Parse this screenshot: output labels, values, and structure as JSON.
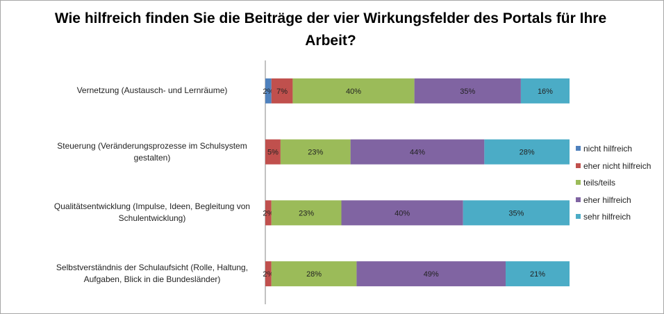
{
  "chart_data": {
    "type": "bar",
    "orientation": "horizontal",
    "stacked": "percent",
    "title": "Wie hilfreich finden Sie die Beiträge der vier Wirkungsfelder des Portals für Ihre Arbeit?",
    "categories": [
      "Vernetzung (Austausch- und Lernräume)",
      "Steuerung (Veränderungsprozesse im Schulsystem gestalten)",
      "Qualitätsentwicklung (Impulse, Ideen, Begleitung von Schulentwicklung)",
      "Selbstverständnis der Schulaufsicht (Rolle, Haltung, Aufgaben, Blick in die Bundesländer)"
    ],
    "series": [
      {
        "name": "nicht hilfreich",
        "color": "#4f81bd",
        "values": [
          2,
          0,
          0,
          0
        ]
      },
      {
        "name": "eher nicht hilfreich",
        "color": "#c0504d",
        "values": [
          7,
          5,
          2,
          2
        ]
      },
      {
        "name": "teils/teils",
        "color": "#9bbb59",
        "values": [
          40,
          23,
          23,
          28
        ]
      },
      {
        "name": "eher hilfreich",
        "color": "#8064a2",
        "values": [
          35,
          44,
          40,
          49
        ]
      },
      {
        "name": "sehr hilfreich",
        "color": "#4bacc6",
        "values": [
          16,
          28,
          35,
          21
        ]
      }
    ],
    "data_label_suffix": "%",
    "legend_position": "right",
    "grid": false
  }
}
